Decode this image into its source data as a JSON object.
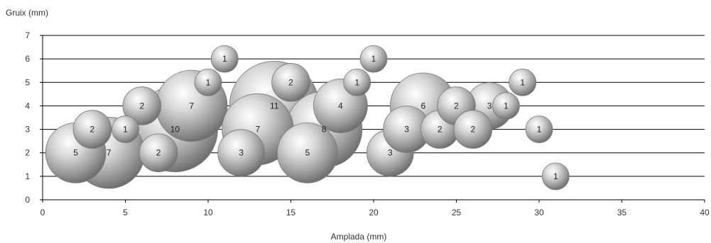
{
  "chart_data": {
    "type": "bubble",
    "ylabel": "Gruix (mm)",
    "xlabel": "Amplada (mm)",
    "xlim": [
      0,
      40
    ],
    "ylim": [
      0,
      7
    ],
    "xticks": [
      "0",
      "5",
      "10",
      "15",
      "20",
      "25",
      "30",
      "35",
      "40"
    ],
    "yticks": [
      "0",
      "1",
      "2",
      "3",
      "4",
      "5",
      "6",
      "7"
    ],
    "grid": "horizontal",
    "bubble_color": "#c8c8c8",
    "points": [
      {
        "x": 2,
        "y": 2,
        "size": 5,
        "label": "5"
      },
      {
        "x": 4,
        "y": 2,
        "size": 7,
        "label": "7"
      },
      {
        "x": 3,
        "y": 3,
        "size": 2,
        "label": "2"
      },
      {
        "x": 5,
        "y": 3,
        "size": 1,
        "label": "1"
      },
      {
        "x": 6,
        "y": 4,
        "size": 2,
        "label": "2"
      },
      {
        "x": 7,
        "y": 2,
        "size": 2,
        "label": "2"
      },
      {
        "x": 8,
        "y": 3,
        "size": 10,
        "label": "10"
      },
      {
        "x": 9,
        "y": 4,
        "size": 7,
        "label": "7"
      },
      {
        "x": 10,
        "y": 5,
        "size": 1,
        "label": "1"
      },
      {
        "x": 11,
        "y": 6,
        "size": 1,
        "label": "1"
      },
      {
        "x": 12,
        "y": 2,
        "size": 3,
        "label": "3"
      },
      {
        "x": 13,
        "y": 3,
        "size": 7,
        "label": "7"
      },
      {
        "x": 14,
        "y": 4,
        "size": 11,
        "label": "11"
      },
      {
        "x": 15,
        "y": 5,
        "size": 2,
        "label": "2"
      },
      {
        "x": 16,
        "y": 2,
        "size": 5,
        "label": "5"
      },
      {
        "x": 17,
        "y": 3,
        "size": 8,
        "label": "8"
      },
      {
        "x": 18,
        "y": 4,
        "size": 4,
        "label": "4"
      },
      {
        "x": 19,
        "y": 5,
        "size": 1,
        "label": "1"
      },
      {
        "x": 20,
        "y": 6,
        "size": 1,
        "label": "1"
      },
      {
        "x": 21,
        "y": 2,
        "size": 3,
        "label": "3"
      },
      {
        "x": 22,
        "y": 3,
        "size": 3,
        "label": "3"
      },
      {
        "x": 23,
        "y": 4,
        "size": 6,
        "label": "6"
      },
      {
        "x": 24,
        "y": 3,
        "size": 2,
        "label": "2"
      },
      {
        "x": 25,
        "y": 4,
        "size": 2,
        "label": "2"
      },
      {
        "x": 26,
        "y": 3,
        "size": 2,
        "label": "2"
      },
      {
        "x": 27,
        "y": 4,
        "size": 3,
        "label": "3"
      },
      {
        "x": 28,
        "y": 4,
        "size": 1,
        "label": "1"
      },
      {
        "x": 29,
        "y": 5,
        "size": 1,
        "label": "1"
      },
      {
        "x": 30,
        "y": 3,
        "size": 1,
        "label": "1"
      },
      {
        "x": 31,
        "y": 1,
        "size": 1,
        "label": "1"
      }
    ]
  }
}
